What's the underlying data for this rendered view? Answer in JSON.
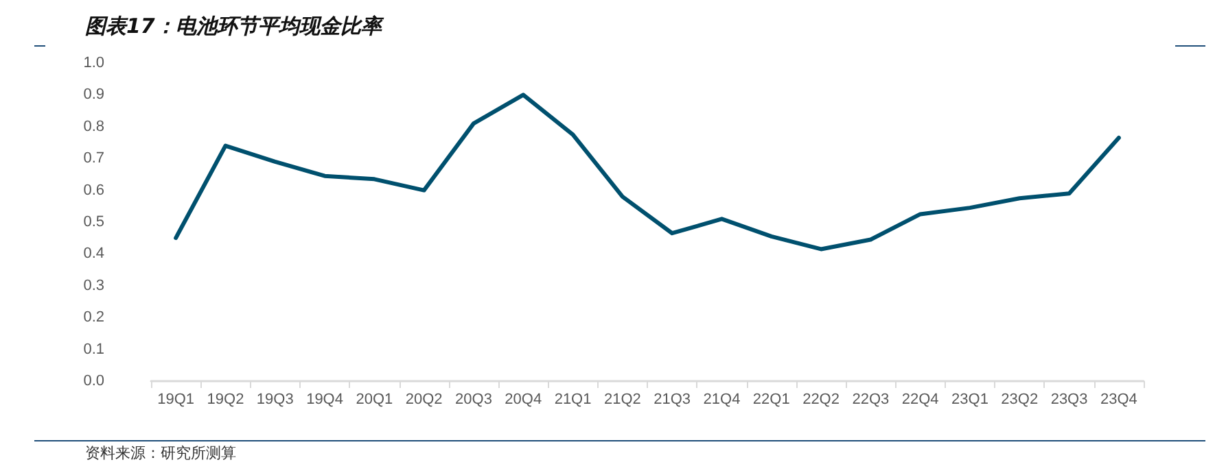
{
  "chart_data": {
    "type": "line",
    "title": "图表17：电池环节平均现金比率",
    "categories": [
      "19Q1",
      "19Q2",
      "19Q3",
      "19Q4",
      "20Q1",
      "20Q2",
      "20Q3",
      "20Q4",
      "21Q1",
      "21Q2",
      "21Q3",
      "21Q4",
      "22Q1",
      "22Q2",
      "22Q3",
      "22Q4",
      "23Q1",
      "23Q2",
      "23Q3",
      "23Q4"
    ],
    "series": [
      {
        "color": "#00506e",
        "values": [
          0.45,
          0.74,
          0.69,
          0.645,
          0.635,
          0.6,
          0.81,
          0.9,
          0.775,
          0.58,
          0.465,
          0.51,
          0.455,
          0.415,
          0.445,
          0.525,
          0.545,
          0.575,
          0.59,
          0.765
        ]
      }
    ],
    "ylim": [
      0,
      1
    ],
    "yticks": [
      {
        "value": 0,
        "label": "0.0"
      },
      {
        "value": 0.1,
        "label": "0.1"
      },
      {
        "value": 0.2,
        "label": "0.2"
      },
      {
        "value": 0.3,
        "label": "0.3"
      },
      {
        "value": 0.4,
        "label": "0.4"
      },
      {
        "value": 0.5,
        "label": "0.5"
      },
      {
        "value": 0.6,
        "label": "0.6"
      },
      {
        "value": 0.7,
        "label": "0.7"
      },
      {
        "value": 0.8,
        "label": "0.8"
      },
      {
        "value": 0.9,
        "label": "0.9"
      },
      {
        "value": 1,
        "label": "1.0"
      }
    ],
    "grid": false,
    "marker": "none",
    "line_style": "solid",
    "annotations": [
      "资料来源：研究所测算"
    ]
  }
}
